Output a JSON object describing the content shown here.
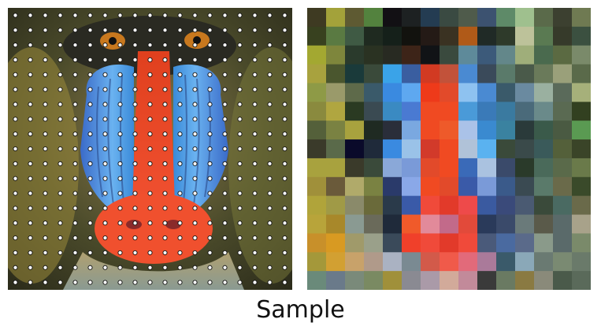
{
  "caption": "Sample",
  "sample_grid": {
    "rows": 19,
    "cols": 19
  },
  "mosaic": {
    "rows": 15,
    "cols": 15,
    "colors": [
      [
        "#3e3a22",
        "#a3a23a",
        "#5e5a32",
        "#53823e",
        "#121014",
        "#1d2122",
        "#243c52",
        "#3a4a42",
        "#4f5b4b",
        "#3c5270",
        "#5e8a68",
        "#9fc08e",
        "#5a6a4a",
        "#3c4030",
        "#6f7a52"
      ],
      [
        "#38411f",
        "#5a7a42",
        "#3f5a44",
        "#1f2a20",
        "#15201a",
        "#12120e",
        "#241a16",
        "#3a3222",
        "#b05a18",
        "#202a26",
        "#2e3a2a",
        "#bdc29a",
        "#5a7a52",
        "#363a2a",
        "#3b5040"
      ],
      [
        "#a3a831",
        "#7e863c",
        "#2a3a2c",
        "#2a3222",
        "#282a22",
        "#3d2418",
        "#111316",
        "#3a4a3e",
        "#5e8a9a",
        "#3c5a7a",
        "#63878a",
        "#9fae7a",
        "#4a6a4e",
        "#5b6a42",
        "#7a8a6a"
      ],
      [
        "#a8a23e",
        "#4a562e",
        "#1a3a3a",
        "#3a4a3a",
        "#3aa3e8",
        "#3a5ea0",
        "#d23a22",
        "#c2523a",
        "#4a8ad2",
        "#3a4a5a",
        "#5a7a6a",
        "#4a5a4a",
        "#6a7a5a",
        "#9aa07a",
        "#5a6a4a"
      ],
      [
        "#8e9a46",
        "#9a9a6a",
        "#5e6a4a",
        "#3a5a6a",
        "#3a8ae0",
        "#5ea8f0",
        "#ee3a1a",
        "#e24a2a",
        "#8ec2f0",
        "#4a8ad2",
        "#3a5a6a",
        "#6a8aa0",
        "#9ab0a0",
        "#5a6a5a",
        "#a6b07a"
      ],
      [
        "#8a8a3e",
        "#b0a640",
        "#2a3a22",
        "#3a4a52",
        "#3a8ac2",
        "#4a7ad2",
        "#f04a22",
        "#f04a22",
        "#4a9ad8",
        "#3a7ab8",
        "#3a7aa0",
        "#4a6a7a",
        "#6a8a8a",
        "#5a6a52",
        "#324020"
      ],
      [
        "#54603a",
        "#7a8242",
        "#a8a23e",
        "#1f2a22",
        "#2a2e3a",
        "#7aa8e0",
        "#f04a22",
        "#ee5a2a",
        "#aac2e8",
        "#3a8ad0",
        "#3a82a0",
        "#2a3a3a",
        "#3a5a4a",
        "#4a5a42",
        "#5a9a52"
      ],
      [
        "#3a3a2a",
        "#5a6a4a",
        "#0a0a2a",
        "#1f2a3a",
        "#3a8ae0",
        "#9ac2e8",
        "#d23a2a",
        "#f04a22",
        "#b0c2d8",
        "#5ab2f0",
        "#3a4a3a",
        "#3a4a4a",
        "#3a5a5a",
        "#54603a",
        "#3a4428"
      ],
      [
        "#a8a23e",
        "#a8a23e",
        "#3a3a2a",
        "#3a4a3a",
        "#8aa8d8",
        "#7a9ad8",
        "#e24a2a",
        "#f04a22",
        "#3a6ab8",
        "#aac2e0",
        "#3a4a6a",
        "#2a3a2a",
        "#4a6a5a",
        "#5a6a4a",
        "#6a7a4a"
      ],
      [
        "#a0903a",
        "#6a5a3a",
        "#b0aa6a",
        "#7a8242",
        "#2a3a6a",
        "#8aa8e8",
        "#f04a22",
        "#e24a2a",
        "#3a5aa8",
        "#7a9ad8",
        "#3a5a8a",
        "#3a4a52",
        "#5a7a6a",
        "#6a6a4a",
        "#3a4a2a"
      ],
      [
        "#b0a43a",
        "#a09a46",
        "#8a8a6a",
        "#6a6a3a",
        "#2a3a4a",
        "#3a5aa8",
        "#f04a3a",
        "#e23a2a",
        "#ee4a4a",
        "#3a5aa0",
        "#3a4a7a",
        "#4a5a72",
        "#3a4a3a",
        "#4a6a62",
        "#6a6a4a"
      ],
      [
        "#b8a43a",
        "#a8882a",
        "#8a9a92",
        "#6a6a5a",
        "#1f2a3a",
        "#f05a2a",
        "#e28a9a",
        "#c26a8a",
        "#e24a3a",
        "#2a3a5a",
        "#3a4a6a",
        "#6a7a7a",
        "#5a5a4a",
        "#5a6a6a",
        "#a8a28a"
      ],
      [
        "#c8902a",
        "#d89a22",
        "#a09a6a",
        "#9aa08a",
        "#3a4a5a",
        "#f0402a",
        "#f04a3a",
        "#e23a2a",
        "#f04a3a",
        "#4a5a7a",
        "#4a6aa0",
        "#5a6a8a",
        "#8a9a8a",
        "#5a6a6a",
        "#7a8a6a"
      ],
      [
        "#a4983a",
        "#d2a032",
        "#c8a26a",
        "#b09a8a",
        "#aab2c2",
        "#7a8a92",
        "#d25a4a",
        "#f05a4a",
        "#e26a7a",
        "#aa7a9a",
        "#3a5a6a",
        "#8aa8b8",
        "#6a7a72",
        "#7a8a72",
        "#6a7a6a"
      ],
      [
        "#6a8a7a",
        "#6a7a8a",
        "#7a8a7a",
        "#7a8a62",
        "#a0903a",
        "#8a8a92",
        "#aa9aa8",
        "#d2aa9a",
        "#c28a9a",
        "#3a3a3a",
        "#6a7a62",
        "#8a7a42",
        "#8a8a7a",
        "#4a5a4a",
        "#5a6a5a"
      ]
    ]
  }
}
